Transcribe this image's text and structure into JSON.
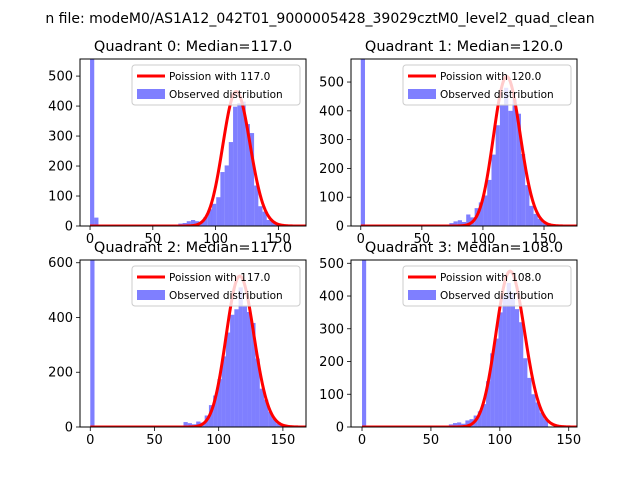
{
  "figure": {
    "suptitle": "n file: modeM0/AS1A12_042T01_9000005428_39029cztM0_level2_quad_clean"
  },
  "chart_data": [
    {
      "type": "bar",
      "title": "Quadrant 0: Median=117.0",
      "xlabel": "",
      "ylabel": "",
      "xlim": [
        -8,
        172
      ],
      "ylim": [
        0,
        557
      ],
      "xticks": [
        0,
        50,
        100,
        150
      ],
      "yticks": [
        0,
        100,
        200,
        300,
        400,
        500
      ],
      "legend": [
        "Poission with 117.0",
        "Observed distribution"
      ],
      "legend_position": "top-right",
      "poisson_mean": 117.0,
      "bin_width": 3.35,
      "spike_bar_value": 557,
      "bars": [
        {
          "x": 0,
          "v": 557
        },
        {
          "x": 3.35,
          "v": 28
        },
        {
          "x": 70.3,
          "v": 8
        },
        {
          "x": 73.7,
          "v": 10
        },
        {
          "x": 77,
          "v": 16
        },
        {
          "x": 80.4,
          "v": 20
        },
        {
          "x": 83.7,
          "v": 16
        },
        {
          "x": 87.1,
          "v": 12
        },
        {
          "x": 90.4,
          "v": 30
        },
        {
          "x": 93.8,
          "v": 56
        },
        {
          "x": 97.1,
          "v": 74
        },
        {
          "x": 100.5,
          "v": 96
        },
        {
          "x": 103.8,
          "v": 180
        },
        {
          "x": 107.2,
          "v": 202
        },
        {
          "x": 110.5,
          "v": 280
        },
        {
          "x": 113.9,
          "v": 398
        },
        {
          "x": 117.3,
          "v": 410
        },
        {
          "x": 120.6,
          "v": 415
        },
        {
          "x": 124,
          "v": 340
        },
        {
          "x": 127.3,
          "v": 310
        },
        {
          "x": 130.7,
          "v": 135
        },
        {
          "x": 134,
          "v": 66
        },
        {
          "x": 137.4,
          "v": 48
        },
        {
          "x": 140.7,
          "v": 20
        },
        {
          "x": 144.1,
          "v": 14
        },
        {
          "x": 147.4,
          "v": 6
        }
      ]
    },
    {
      "type": "bar",
      "title": "Quadrant 1: Median=120.0",
      "xlabel": "",
      "ylabel": "",
      "xlim": [
        -8,
        177
      ],
      "ylim": [
        0,
        580
      ],
      "xticks": [
        0,
        50,
        100,
        150
      ],
      "yticks": [
        0,
        100,
        200,
        300,
        400,
        500
      ],
      "legend": [
        "Poission with 120.0",
        "Observed distribution"
      ],
      "legend_position": "top-right",
      "poisson_mean": 120.0,
      "bin_width": 3.45,
      "spike_bar_value": 580,
      "bars": [
        {
          "x": 0,
          "v": 580
        },
        {
          "x": 72.5,
          "v": 10
        },
        {
          "x": 75.9,
          "v": 16
        },
        {
          "x": 79.4,
          "v": 20
        },
        {
          "x": 82.8,
          "v": 14
        },
        {
          "x": 86.3,
          "v": 40
        },
        {
          "x": 89.7,
          "v": 30
        },
        {
          "x": 93.2,
          "v": 62
        },
        {
          "x": 96.6,
          "v": 82
        },
        {
          "x": 100.1,
          "v": 106
        },
        {
          "x": 103.5,
          "v": 160
        },
        {
          "x": 107,
          "v": 248
        },
        {
          "x": 110.4,
          "v": 350
        },
        {
          "x": 113.9,
          "v": 420
        },
        {
          "x": 117.3,
          "v": 480
        },
        {
          "x": 120.8,
          "v": 400
        },
        {
          "x": 124.2,
          "v": 440
        },
        {
          "x": 127.7,
          "v": 390
        },
        {
          "x": 131.1,
          "v": 250
        },
        {
          "x": 134.6,
          "v": 142
        },
        {
          "x": 138,
          "v": 70
        },
        {
          "x": 141.5,
          "v": 42
        },
        {
          "x": 144.9,
          "v": 25
        },
        {
          "x": 148.4,
          "v": 12
        },
        {
          "x": 151.8,
          "v": 6
        }
      ]
    },
    {
      "type": "bar",
      "title": "Quadrant 2: Median=117.0",
      "xlabel": "",
      "ylabel": "",
      "xlim": [
        -8,
        168
      ],
      "ylim": [
        0,
        610
      ],
      "xticks": [
        0,
        50,
        100,
        150
      ],
      "yticks": [
        0,
        200,
        400,
        600
      ],
      "legend": [
        "Poission with 117.0",
        "Observed distribution"
      ],
      "legend_position": "top-right",
      "poisson_mean": 117.0,
      "bin_width": 3.3,
      "spike_bar_value": 610,
      "bars": [
        {
          "x": 0,
          "v": 610
        },
        {
          "x": 72.6,
          "v": 18
        },
        {
          "x": 75.9,
          "v": 14
        },
        {
          "x": 79.2,
          "v": 10
        },
        {
          "x": 82.5,
          "v": 20
        },
        {
          "x": 85.8,
          "v": 16
        },
        {
          "x": 89.1,
          "v": 42
        },
        {
          "x": 92.4,
          "v": 80
        },
        {
          "x": 95.7,
          "v": 115
        },
        {
          "x": 99,
          "v": 175
        },
        {
          "x": 102.3,
          "v": 258
        },
        {
          "x": 105.6,
          "v": 345
        },
        {
          "x": 108.9,
          "v": 410
        },
        {
          "x": 112.2,
          "v": 430
        },
        {
          "x": 115.5,
          "v": 510
        },
        {
          "x": 118.8,
          "v": 440
        },
        {
          "x": 122.1,
          "v": 420
        },
        {
          "x": 125.4,
          "v": 380
        },
        {
          "x": 128.7,
          "v": 250
        },
        {
          "x": 132,
          "v": 140
        },
        {
          "x": 135.3,
          "v": 100
        },
        {
          "x": 138.6,
          "v": 56
        },
        {
          "x": 141.9,
          "v": 30
        },
        {
          "x": 145.2,
          "v": 12
        },
        {
          "x": 148.5,
          "v": 4
        }
      ]
    },
    {
      "type": "bar",
      "title": "Quadrant 3: Median=108.0",
      "xlabel": "",
      "ylabel": "",
      "xlim": [
        -8,
        156
      ],
      "ylim": [
        0,
        510
      ],
      "xticks": [
        0,
        50,
        100,
        150
      ],
      "yticks": [
        0,
        100,
        200,
        300,
        400,
        500
      ],
      "legend": [
        "Poission with 108.0",
        "Observed distribution"
      ],
      "legend_position": "top-right",
      "poisson_mean": 108.0,
      "bin_width": 3.0,
      "spike_bar_value": 510,
      "bars": [
        {
          "x": 0,
          "v": 510
        },
        {
          "x": 63,
          "v": 8
        },
        {
          "x": 66,
          "v": 12
        },
        {
          "x": 69,
          "v": 14
        },
        {
          "x": 72,
          "v": 10
        },
        {
          "x": 75,
          "v": 20
        },
        {
          "x": 78,
          "v": 24
        },
        {
          "x": 81,
          "v": 35
        },
        {
          "x": 84,
          "v": 48
        },
        {
          "x": 87,
          "v": 70
        },
        {
          "x": 90,
          "v": 140
        },
        {
          "x": 93,
          "v": 225
        },
        {
          "x": 96,
          "v": 270
        },
        {
          "x": 99,
          "v": 350
        },
        {
          "x": 102,
          "v": 400
        },
        {
          "x": 105,
          "v": 440
        },
        {
          "x": 108,
          "v": 410
        },
        {
          "x": 111,
          "v": 360
        },
        {
          "x": 114,
          "v": 320
        },
        {
          "x": 117,
          "v": 210
        },
        {
          "x": 120,
          "v": 150
        },
        {
          "x": 123,
          "v": 100
        },
        {
          "x": 126,
          "v": 75
        },
        {
          "x": 129,
          "v": 44
        },
        {
          "x": 132,
          "v": 24
        }
      ]
    }
  ]
}
